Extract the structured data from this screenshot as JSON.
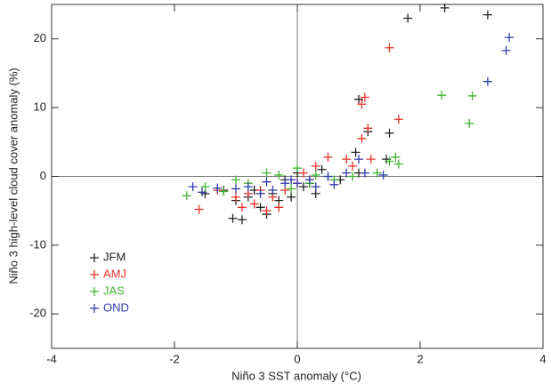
{
  "chart_data": {
    "type": "scatter",
    "xlabel": "Niño 3 SST anomaly (°C)",
    "ylabel": "Niño 3 high-level cloud cover anomaly (%)",
    "xlim": [
      -4,
      4
    ],
    "ylim": [
      -25,
      25
    ],
    "xticks": [
      -4,
      -2,
      0,
      2,
      4
    ],
    "yticks": [
      -20,
      -10,
      0,
      10,
      20
    ],
    "series": [
      {
        "name": "JFM",
        "color": "#222222",
        "x": [
          1.8,
          2.4,
          3.1,
          1.0,
          1.15,
          1.5,
          1.45,
          0.95,
          1.0,
          0.4,
          0.2,
          0.1,
          -0.3,
          -0.5,
          -0.6,
          -0.8,
          -0.9,
          -1.05,
          -1.0,
          -1.2,
          -1.5,
          -0.7,
          -0.4,
          0.3,
          -0.1,
          0.0,
          0.7,
          -0.2
        ],
        "y": [
          23,
          24.5,
          23.5,
          11.2,
          6.5,
          6.3,
          2.5,
          3.5,
          0.5,
          1.0,
          -1,
          -1.5,
          -3.5,
          -5.5,
          -4.5,
          -3,
          -6.3,
          -6.1,
          -3.5,
          -2,
          -2.5,
          -2,
          -2.5,
          -2.5,
          -3,
          0.5,
          -0.5,
          -0.5
        ]
      },
      {
        "name": "AMJ",
        "color": "#e8342a",
        "x": [
          1.5,
          1.1,
          1.05,
          1.15,
          1.65,
          1.05,
          0.8,
          0.5,
          0.9,
          0.3,
          -1.6,
          -0.9,
          -0.7,
          -0.5,
          -0.4,
          -0.2,
          0.0,
          0.1,
          -0.3,
          -0.8,
          -1.0,
          -0.6,
          0.2,
          1.2,
          -1.3
        ],
        "y": [
          18.7,
          11.5,
          10.5,
          7,
          8.3,
          5.5,
          2.5,
          2.8,
          1.5,
          1.5,
          -4.8,
          -4.5,
          -4,
          -5,
          -3,
          -2,
          -1,
          0.5,
          -4.5,
          -2.5,
          -3,
          -2,
          -0.5,
          2.5,
          -2
        ]
      },
      {
        "name": "JAS",
        "color": "#3fb52e",
        "x": [
          2.35,
          2.85,
          2.8,
          1.6,
          1.65,
          1.5,
          1.3,
          0.9,
          0.6,
          0.3,
          -0.5,
          -0.3,
          0.0,
          -0.8,
          -1.0,
          -1.5,
          -1.8,
          -1.2,
          0.2,
          0.5,
          -0.1,
          -0.6
        ],
        "y": [
          11.8,
          11.7,
          7.7,
          2.8,
          1.8,
          2.2,
          0.5,
          0,
          -0.5,
          0.2,
          0.5,
          0.2,
          1.2,
          -1,
          -0.5,
          -1.5,
          -2.8,
          -2.2,
          -1,
          0,
          -1.8,
          -2.5
        ]
      },
      {
        "name": "OND",
        "color": "#2f3da8",
        "x": [
          3.45,
          3.4,
          3.1,
          1.0,
          1.1,
          0.8,
          0.5,
          0.2,
          0.0,
          -0.2,
          -0.4,
          -0.6,
          -0.8,
          -1.0,
          -1.3,
          -1.55,
          -1.7,
          -0.5,
          -0.1,
          0.3,
          1.4,
          0.6
        ],
        "y": [
          20.2,
          18.3,
          13.8,
          2.5,
          0.5,
          0.5,
          0,
          -0.5,
          -1,
          -1,
          -2,
          -2.5,
          -1.5,
          -1.8,
          -1.7,
          -2.3,
          -1.5,
          -0.8,
          -0.5,
          -1.5,
          0.2,
          -1.2
        ]
      }
    ]
  }
}
